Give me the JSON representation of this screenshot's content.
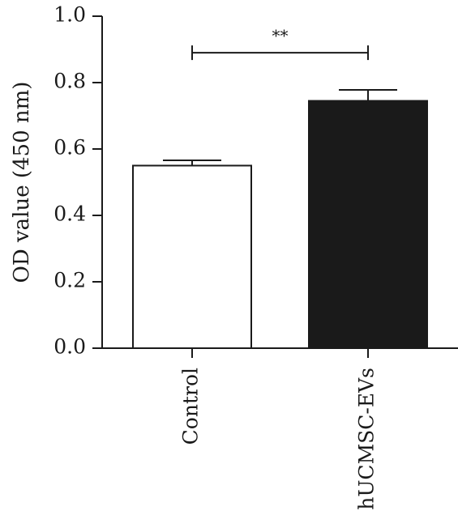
{
  "chart_data": {
    "type": "bar",
    "title": "",
    "xlabel": "",
    "ylabel": "OD value (450 nm)",
    "ylim": [
      0,
      1.0
    ],
    "yticks": [
      0.0,
      0.2,
      0.4,
      0.6,
      0.8,
      1.0
    ],
    "ytick_labels": [
      "0.0",
      "0.2",
      "0.4",
      "0.6",
      "0.8",
      "1.0"
    ],
    "categories": [
      "Control",
      "hUCMSC-EVs"
    ],
    "values": [
      0.55,
      0.745
    ],
    "error_upper": [
      0.016,
      0.033
    ],
    "bar_fills": [
      "#ffffff",
      "#1a1a1a"
    ],
    "bar_stroke": "#1a1a1a",
    "grid": false,
    "annotations": [
      {
        "between": [
          "Control",
          "hUCMSC-EVs"
        ],
        "text": "**",
        "y": 0.89
      }
    ]
  }
}
